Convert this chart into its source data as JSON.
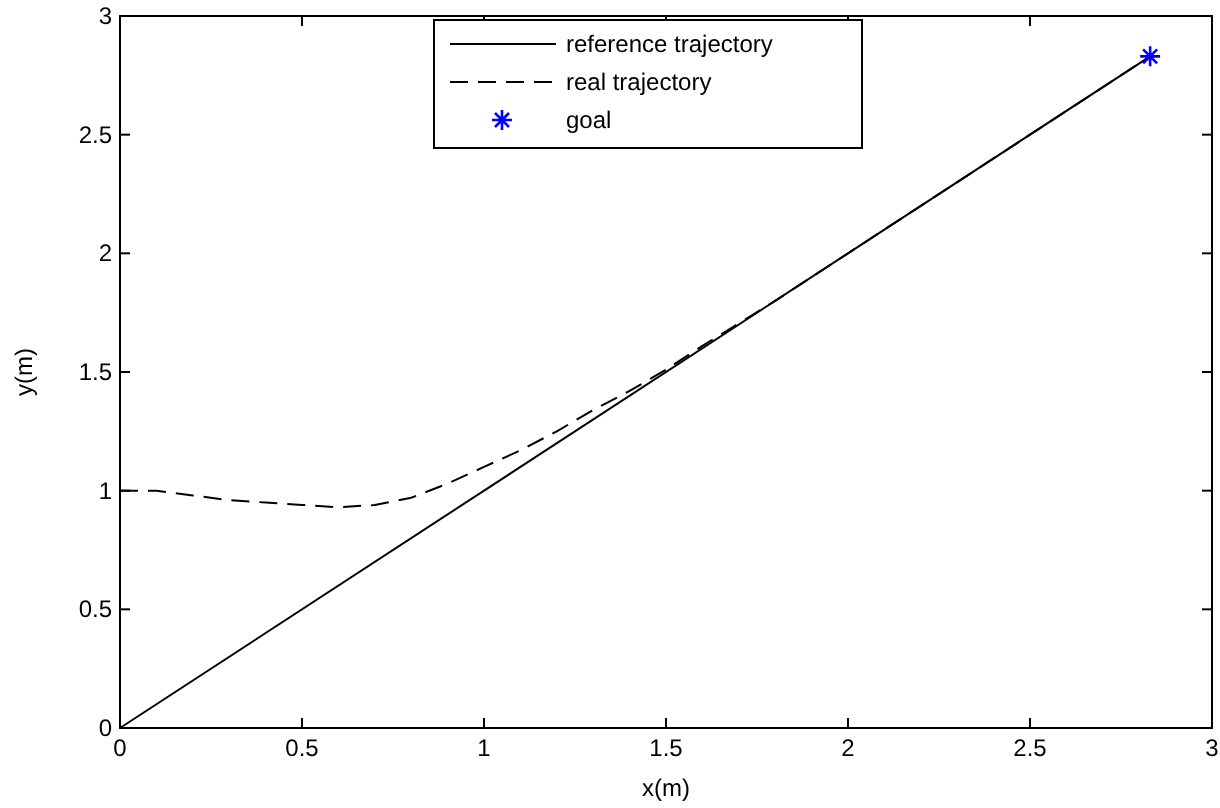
{
  "chart_data": {
    "type": "line",
    "xlabel": "x(m)",
    "ylabel": "y(m)",
    "xlim": [
      0,
      3
    ],
    "ylim": [
      0,
      3
    ],
    "xticks": [
      0,
      0.5,
      1,
      1.5,
      2,
      2.5,
      3
    ],
    "yticks": [
      0,
      0.5,
      1,
      1.5,
      2,
      2.5,
      3
    ],
    "grid": false,
    "legend": "top",
    "series": [
      {
        "name": "reference trajectory",
        "color": "#000000",
        "line_style": "solid",
        "x": [
          0,
          2.83
        ],
        "values": [
          0,
          2.83
        ]
      },
      {
        "name": "real trajectory",
        "color": "#000000",
        "line_style": "dashed",
        "x": [
          0,
          0.1,
          0.2,
          0.3,
          0.4,
          0.5,
          0.6,
          0.7,
          0.8,
          0.9,
          1,
          1.1,
          1.2,
          1.3,
          1.4,
          1.5,
          1.6,
          1.8,
          2,
          2.4,
          2.83
        ],
        "values": [
          1,
          1,
          0.98,
          0.96,
          0.95,
          0.94,
          0.93,
          0.94,
          0.97,
          1.03,
          1.1,
          1.17,
          1.25,
          1.34,
          1.42,
          1.51,
          1.61,
          1.8,
          2,
          2.4,
          2.83
        ]
      },
      {
        "name": "goal",
        "type": "scatter",
        "color": "#0000ff",
        "marker": "cross",
        "x": [
          2.83
        ],
        "values": [
          2.83
        ]
      }
    ]
  }
}
